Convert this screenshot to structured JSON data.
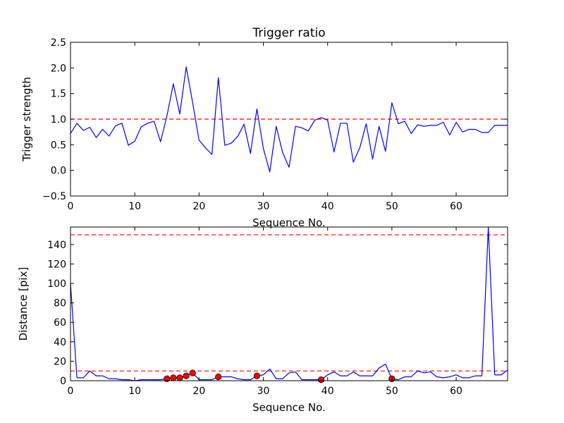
{
  "chart_data": [
    {
      "type": "line",
      "title": "Trigger ratio",
      "xlabel": "Sequence No.",
      "ylabel": "Trigger strength",
      "xlim": [
        0,
        68
      ],
      "ylim": [
        -0.5,
        2.5
      ],
      "xticks": [
        0,
        10,
        20,
        30,
        40,
        50,
        60
      ],
      "yticks": [
        -0.5,
        0.0,
        0.5,
        1.0,
        1.5,
        2.0,
        2.5
      ],
      "ytick_labels": [
        "−0.5",
        "0.0",
        "0.5",
        "1.0",
        "1.5",
        "2.0",
        "2.5"
      ],
      "grid": false,
      "series": [
        {
          "color": "#0000ff",
          "style": "solid",
          "x": [
            0,
            1,
            2,
            3,
            4,
            5,
            6,
            7,
            8,
            9,
            10,
            11,
            12,
            13,
            14,
            15,
            16,
            17,
            18,
            19,
            20,
            21,
            22,
            23,
            24,
            25,
            26,
            27,
            28,
            29,
            30,
            31,
            32,
            33,
            34,
            35,
            36,
            37,
            38,
            39,
            40,
            41,
            42,
            43,
            44,
            45,
            46,
            47,
            48,
            49,
            50,
            51,
            52,
            53,
            54,
            55,
            56,
            57,
            58,
            59,
            60,
            61,
            62,
            63,
            64,
            65,
            66,
            67,
            68
          ],
          "y": [
            0.72,
            0.92,
            0.78,
            0.84,
            0.64,
            0.8,
            0.67,
            0.87,
            0.92,
            0.49,
            0.57,
            0.85,
            0.92,
            0.96,
            0.56,
            1.06,
            1.69,
            1.1,
            2.02,
            1.32,
            0.59,
            0.44,
            0.31,
            1.81,
            0.49,
            0.53,
            0.66,
            0.9,
            0.33,
            1.2,
            0.43,
            -0.03,
            0.86,
            0.35,
            0.06,
            0.86,
            0.83,
            0.77,
            0.98,
            1.03,
            0.98,
            0.36,
            0.92,
            0.92,
            0.16,
            0.44,
            0.91,
            0.22,
            0.86,
            0.37,
            1.32,
            0.91,
            0.96,
            0.72,
            0.89,
            0.86,
            0.88,
            0.88,
            0.94,
            0.69,
            0.94,
            0.75,
            0.8,
            0.8,
            0.74,
            0.74,
            0.88,
            0.88,
            0.88
          ]
        }
      ],
      "reference_lines": [
        {
          "y": 1.0,
          "color": "#ff0000",
          "style": "dashed"
        }
      ]
    },
    {
      "type": "line",
      "title": "",
      "xlabel": "Sequence No.",
      "ylabel": "Distance [pix]",
      "xlim": [
        0,
        68
      ],
      "ylim": [
        0,
        158
      ],
      "xticks": [
        0,
        10,
        20,
        30,
        40,
        50,
        60
      ],
      "yticks": [
        0,
        20,
        40,
        60,
        80,
        100,
        120,
        140
      ],
      "grid": false,
      "series": [
        {
          "color": "#0000ff",
          "style": "solid",
          "x": [
            0,
            1,
            2,
            3,
            4,
            5,
            6,
            7,
            8,
            9,
            10,
            11,
            12,
            13,
            14,
            15,
            16,
            17,
            18,
            19,
            20,
            21,
            22,
            23,
            24,
            25,
            26,
            27,
            28,
            29,
            30,
            31,
            32,
            33,
            34,
            35,
            36,
            37,
            38,
            39,
            40,
            41,
            42,
            43,
            44,
            45,
            46,
            47,
            48,
            49,
            50,
            51,
            52,
            53,
            54,
            55,
            56,
            57,
            58,
            59,
            60,
            61,
            62,
            63,
            64,
            65,
            66,
            67,
            68
          ],
          "y": [
            100,
            3,
            3,
            10,
            5,
            5,
            2,
            2,
            1,
            1,
            0,
            1,
            1,
            1,
            1,
            2,
            3,
            3,
            5,
            8,
            1,
            1,
            1,
            4,
            4,
            4,
            2,
            1,
            1,
            5,
            6,
            12,
            2,
            2,
            8,
            9,
            1,
            1,
            1,
            1,
            6,
            9,
            5,
            5,
            9,
            5,
            5,
            5,
            13,
            17,
            2,
            1,
            4,
            4,
            10,
            8,
            9,
            4,
            3,
            4,
            6,
            3,
            3,
            5,
            5,
            158,
            6,
            6,
            11
          ]
        },
        {
          "color": "#ff0000",
          "style": "markers",
          "x": [
            15,
            16,
            17,
            18,
            19,
            23,
            29,
            39,
            50
          ],
          "y": [
            2,
            3,
            3,
            5,
            8,
            4,
            5,
            1,
            2
          ]
        }
      ],
      "reference_lines": [
        {
          "y": 10,
          "color": "#ff0000",
          "style": "dashed"
        },
        {
          "y": 150,
          "color": "#ff0000",
          "style": "dashed"
        }
      ]
    }
  ]
}
